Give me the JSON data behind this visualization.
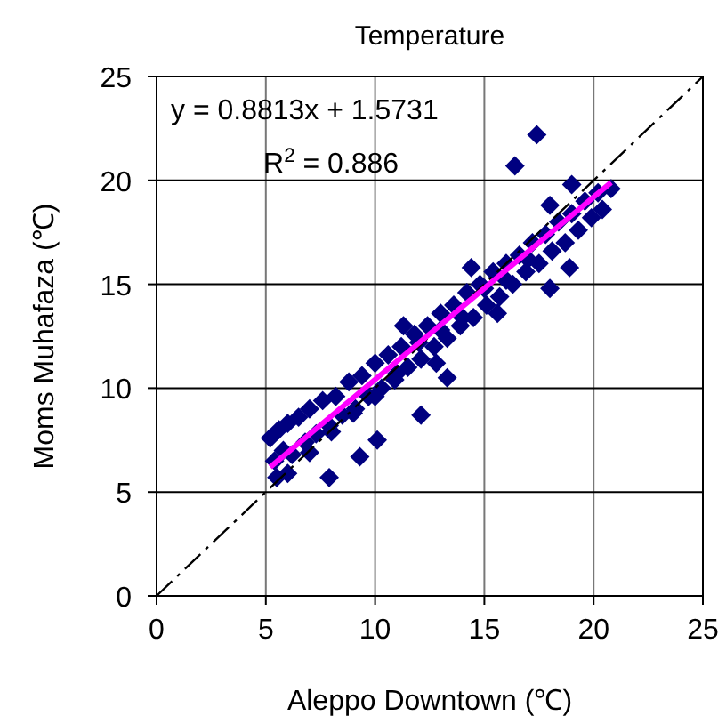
{
  "chart_data": {
    "type": "scatter",
    "title": "Temperature",
    "xlabel": "Aleppo Downtown (℃)",
    "ylabel": "Moms Muhafaza (℃)",
    "xlim": [
      0,
      25
    ],
    "ylim": [
      0,
      25
    ],
    "xticks": [
      0,
      5,
      10,
      15,
      20,
      25
    ],
    "yticks": [
      0,
      5,
      10,
      15,
      20,
      25
    ],
    "grid": true,
    "annotations": [
      "y = 0.8813x + 1.5731",
      "R$^{2}$ = 0.886"
    ],
    "series": [
      {
        "color": "#000080",
        "marker": "diamond",
        "x": [
          5.2,
          5.4,
          5.6,
          5.8,
          6.0,
          6.2,
          6.5,
          6.8,
          7.0,
          7.3,
          7.6,
          7.9,
          8.2,
          8.5,
          8.8,
          9.1,
          9.4,
          9.7,
          10.0,
          10.3,
          10.6,
          10.9,
          11.2,
          11.5,
          11.8,
          12.1,
          12.4,
          12.7,
          13.0,
          13.3,
          13.6,
          13.9,
          14.2,
          14.5,
          14.8,
          15.1,
          15.4,
          15.7,
          16.0,
          16.3,
          16.6,
          16.9,
          17.2,
          17.5,
          17.8,
          18.1,
          18.4,
          18.7,
          19.0,
          19.3,
          19.6,
          19.9,
          20.2,
          20.4,
          20.8,
          6.0,
          7.0,
          8.0,
          9.0,
          10.0,
          11.0,
          12.0,
          13.0,
          14.0,
          15.0,
          16.0,
          17.0,
          18.0,
          19.0,
          5.5,
          7.9,
          9.3,
          10.1,
          12.1,
          13.3,
          17.4,
          18.9,
          16.4,
          18.0,
          12.8,
          11.3,
          15.6,
          14.4
        ],
        "values": [
          7.6,
          6.5,
          8.0,
          7.0,
          8.3,
          6.8,
          8.6,
          7.4,
          9.0,
          7.8,
          9.4,
          8.2,
          9.6,
          8.7,
          10.3,
          9.0,
          10.6,
          9.6,
          11.2,
          10.0,
          11.6,
          10.4,
          12.0,
          11.0,
          12.6,
          11.4,
          13.0,
          12.0,
          13.6,
          12.4,
          14.0,
          13.0,
          14.6,
          13.4,
          15.0,
          14.0,
          15.6,
          14.4,
          16.0,
          15.0,
          16.4,
          15.6,
          17.0,
          16.0,
          17.4,
          16.6,
          18.0,
          17.0,
          18.4,
          17.6,
          19.0,
          18.2,
          19.4,
          18.6,
          19.6,
          5.9,
          6.9,
          7.9,
          8.8,
          9.6,
          10.7,
          12.2,
          12.8,
          13.4,
          14.8,
          15.2,
          16.2,
          18.8,
          19.8,
          5.7,
          5.7,
          6.7,
          7.5,
          8.7,
          10.5,
          22.2,
          15.8,
          20.7,
          14.8,
          11.2,
          13.0,
          13.6,
          15.8
        ]
      },
      {
        "type": "line",
        "color": "#000000",
        "line_style": "dashed",
        "x": [
          0,
          25
        ],
        "values": [
          0,
          25
        ]
      },
      {
        "type": "line",
        "color": "#ff00ff",
        "line_style": "solid",
        "x": [
          5.2,
          20.8
        ],
        "values": [
          6.2,
          19.9
        ]
      }
    ]
  }
}
